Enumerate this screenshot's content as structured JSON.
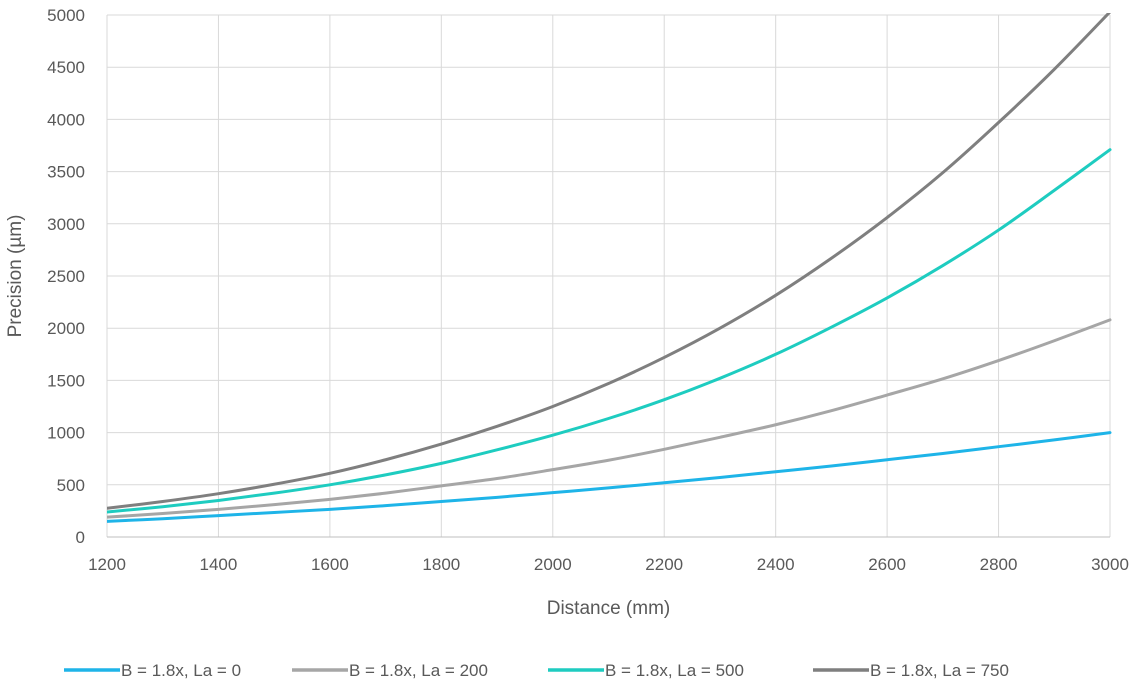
{
  "chart_data": {
    "type": "line",
    "title": "",
    "xlabel": "Distance (mm)",
    "ylabel": "Precision (µm)",
    "xlim": [
      1200,
      3000
    ],
    "ylim": [
      0,
      5000
    ],
    "x_ticks": [
      1200,
      1400,
      1600,
      1800,
      2000,
      2200,
      2400,
      2600,
      2800,
      3000
    ],
    "y_ticks": [
      0,
      500,
      1000,
      1500,
      2000,
      2500,
      3000,
      3500,
      4000,
      4500,
      5000
    ],
    "grid": true,
    "legend_position": "bottom",
    "x": [
      1200,
      1300,
      1400,
      1500,
      1600,
      1700,
      1800,
      1900,
      2000,
      2100,
      2200,
      2300,
      2400,
      2500,
      2600,
      2700,
      2800,
      2900,
      3000
    ],
    "series": [
      {
        "name": "B = 1.8x, La = 0",
        "color": "#1EB4E8",
        "values": [
          150,
          175,
          205,
          235,
          265,
          300,
          340,
          380,
          425,
          470,
          520,
          570,
          625,
          680,
          740,
          800,
          865,
          930,
          1000
        ]
      },
      {
        "name": "B = 1.8x, La = 200",
        "color": "#A6A6A6",
        "values": [
          190,
          225,
          265,
          310,
          360,
          420,
          490,
          560,
          645,
          735,
          840,
          955,
          1075,
          1210,
          1360,
          1515,
          1690,
          1880,
          2080
        ]
      },
      {
        "name": "B = 1.8x, La = 500",
        "color": "#1ECCC0",
        "values": [
          240,
          290,
          350,
          420,
          500,
          595,
          705,
          835,
          975,
          1135,
          1315,
          1520,
          1750,
          2010,
          2290,
          2600,
          2940,
          3320,
          3710
        ]
      },
      {
        "name": "B = 1.8x, La = 750",
        "color": "#7F7F7F",
        "values": [
          275,
          340,
          415,
          505,
          610,
          740,
          890,
          1060,
          1250,
          1470,
          1720,
          2000,
          2315,
          2670,
          3060,
          3490,
          3970,
          4480,
          5030
        ]
      }
    ]
  }
}
